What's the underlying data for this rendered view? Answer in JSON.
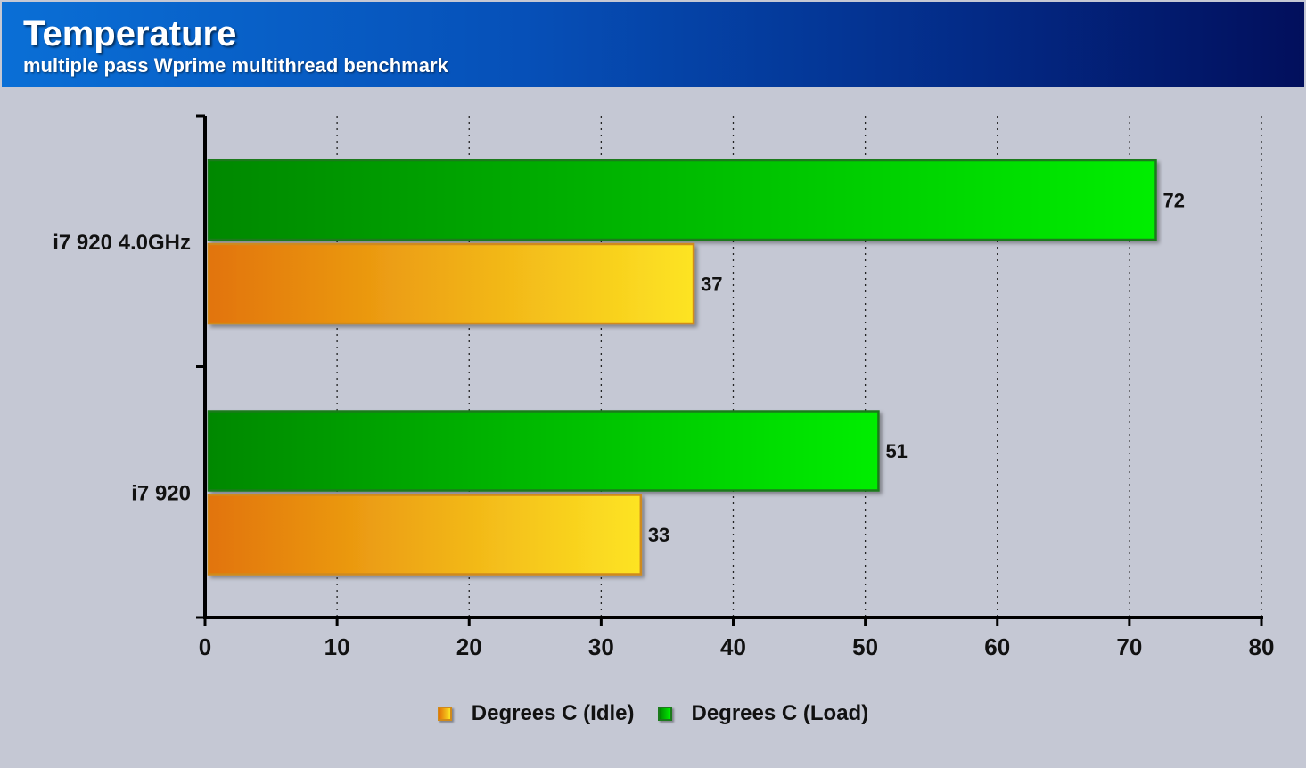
{
  "header": {
    "title": "Temperature",
    "subtitle": "multiple pass Wprime multithread benchmark"
  },
  "chart_data": {
    "type": "bar",
    "orientation": "horizontal",
    "title": "Temperature",
    "subtitle": "multiple pass Wprime multithread benchmark",
    "categories": [
      "i7 920 4.0GHz",
      "i7 920"
    ],
    "series": [
      {
        "name": "Degrees C (Idle)",
        "values": [
          37,
          33
        ],
        "color_light": "#fde423",
        "color_dark": "#e27408",
        "border": "#d08a1a"
      },
      {
        "name": "Degrees C (Load)",
        "values": [
          72,
          51
        ],
        "color_light": "#00ee00",
        "color_dark": "#008800",
        "border": "#1c7a1c"
      }
    ],
    "xlim": [
      0,
      80
    ],
    "xticks": [
      0,
      10,
      20,
      30,
      40,
      50,
      60,
      70,
      80
    ],
    "grid": "vertical dotted",
    "legend_position": "bottom-center",
    "data_labels": true
  }
}
